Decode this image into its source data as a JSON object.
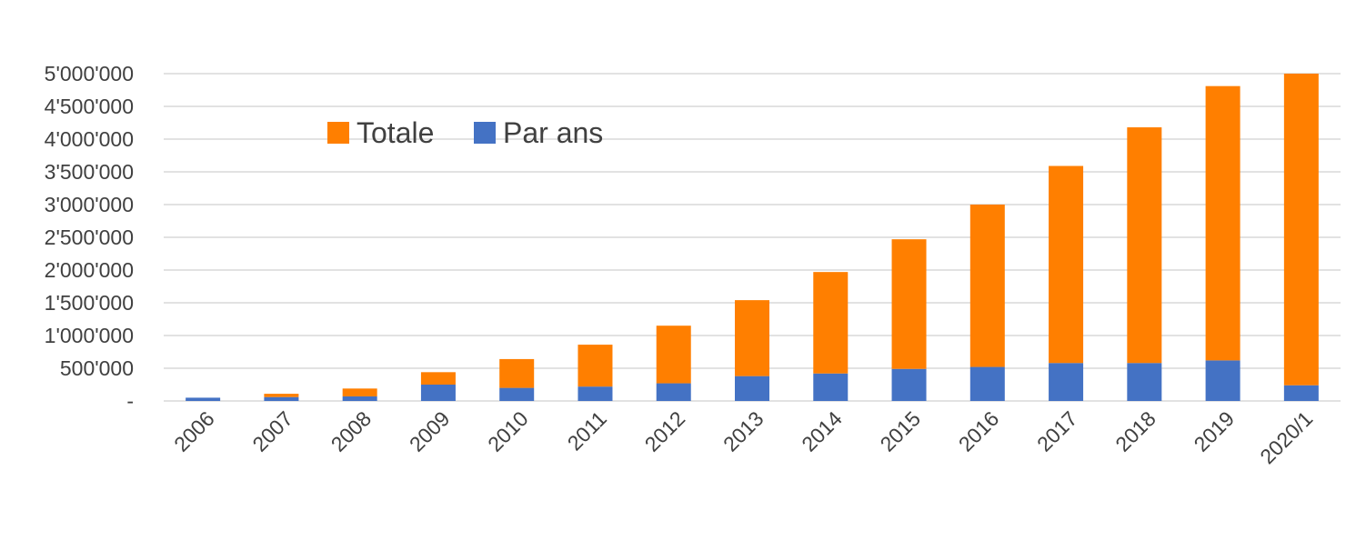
{
  "chart_data": {
    "type": "bar",
    "stacked": true,
    "categories": [
      "2006",
      "2007",
      "2008",
      "2009",
      "2010",
      "2011",
      "2012",
      "2013",
      "2014",
      "2015",
      "2016",
      "2017",
      "2018",
      "2019",
      "2020/1"
    ],
    "series": [
      {
        "name": "Par ans",
        "color": "#4472c4",
        "values": [
          50000,
          60000,
          70000,
          250000,
          200000,
          220000,
          270000,
          380000,
          420000,
          490000,
          520000,
          580000,
          580000,
          620000,
          240000
        ]
      },
      {
        "name": "Totale",
        "color": "#ff7f00",
        "values": [
          0,
          50000,
          120000,
          190000,
          440000,
          640000,
          880000,
          1160000,
          1550000,
          1980000,
          2480000,
          3010000,
          3600000,
          4190000,
          4760000
        ]
      }
    ],
    "y_ticks": [
      {
        "value": 0,
        "label": "-"
      },
      {
        "value": 500000,
        "label": "500'000"
      },
      {
        "value": 1000000,
        "label": "1'000'000"
      },
      {
        "value": 1500000,
        "label": "1'500'000"
      },
      {
        "value": 2000000,
        "label": "2'000'000"
      },
      {
        "value": 2500000,
        "label": "2'500'000"
      },
      {
        "value": 3000000,
        "label": "3'000'000"
      },
      {
        "value": 3500000,
        "label": "3'500'000"
      },
      {
        "value": 4000000,
        "label": "4'000'000"
      },
      {
        "value": 4500000,
        "label": "4'500'000"
      },
      {
        "value": 5000000,
        "label": "5'000'000"
      }
    ],
    "ylim": [
      0,
      5000000
    ],
    "grid": true,
    "legend": {
      "placement": "top-left",
      "entries": [
        {
          "label": "Totale",
          "color": "#ff7f00"
        },
        {
          "label": "Par ans",
          "color": "#4472c4"
        }
      ]
    },
    "title": "",
    "xlabel": "",
    "ylabel": ""
  }
}
